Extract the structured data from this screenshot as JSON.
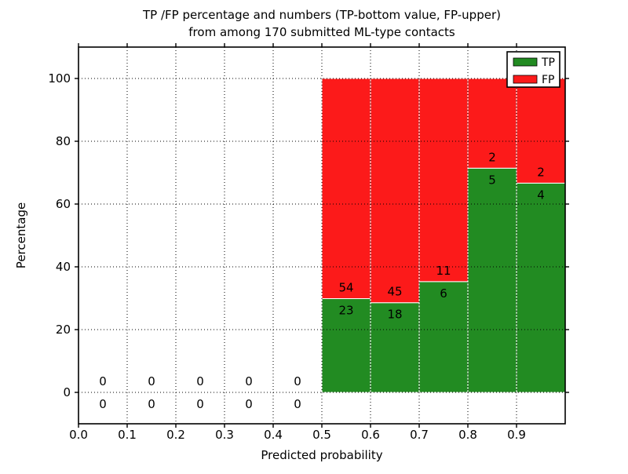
{
  "figure": {
    "title_line1": "TP /FP percentage and numbers (TP-bottom value, FP-upper)",
    "title_line2": "from among 170 submitted ML-type contacts"
  },
  "chart_data": {
    "type": "bar",
    "stacked": true,
    "title": "TP /FP percentage and numbers (TP-bottom value, FP-upper)\nfrom among 170 submitted ML-type contacts",
    "xlabel": "Predicted probability",
    "ylabel": "Percentage",
    "xlim": [
      0.0,
      1.0
    ],
    "ylim": [
      -10,
      110
    ],
    "grid": true,
    "grid_style": "dotted",
    "total_contacts": 170,
    "annotation_rule": "TP count below segment boundary, FP count above segment boundary",
    "xticks": [
      {
        "value": 0.0,
        "label": "0.0"
      },
      {
        "value": 0.1,
        "label": "0.1"
      },
      {
        "value": 0.2,
        "label": "0.2"
      },
      {
        "value": 0.3,
        "label": "0.3"
      },
      {
        "value": 0.4,
        "label": "0.4"
      },
      {
        "value": 0.5,
        "label": "0.5"
      },
      {
        "value": 0.6,
        "label": "0.6"
      },
      {
        "value": 0.7,
        "label": "0.7"
      },
      {
        "value": 0.8,
        "label": "0.8"
      },
      {
        "value": 0.9,
        "label": "0.9"
      }
    ],
    "yticks": [
      {
        "value": 0,
        "label": "0"
      },
      {
        "value": 20,
        "label": "20"
      },
      {
        "value": 40,
        "label": "40"
      },
      {
        "value": 60,
        "label": "60"
      },
      {
        "value": 80,
        "label": "80"
      },
      {
        "value": 100,
        "label": "100"
      }
    ],
    "legend": {
      "position": "upper right",
      "entries": [
        {
          "name": "TP",
          "color": "#228b22"
        },
        {
          "name": "FP",
          "color": "#fc1a1a"
        }
      ]
    },
    "colors": {
      "tp": "#228b22",
      "fp": "#fc1a1a",
      "bar_edge": "#ffffff",
      "grid": "#000000",
      "axis": "#000000",
      "text": "#000000",
      "background": "#ffffff"
    },
    "bins": [
      {
        "x_start": 0.0,
        "x_end": 0.1,
        "tp_count": 0,
        "fp_count": 0,
        "tp_pct": 0,
        "fp_pct": 0
      },
      {
        "x_start": 0.1,
        "x_end": 0.2,
        "tp_count": 0,
        "fp_count": 0,
        "tp_pct": 0,
        "fp_pct": 0
      },
      {
        "x_start": 0.2,
        "x_end": 0.3,
        "tp_count": 0,
        "fp_count": 0,
        "tp_pct": 0,
        "fp_pct": 0
      },
      {
        "x_start": 0.3,
        "x_end": 0.4,
        "tp_count": 0,
        "fp_count": 0,
        "tp_pct": 0,
        "fp_pct": 0
      },
      {
        "x_start": 0.4,
        "x_end": 0.5,
        "tp_count": 0,
        "fp_count": 0,
        "tp_pct": 0,
        "fp_pct": 0
      },
      {
        "x_start": 0.5,
        "x_end": 0.6,
        "tp_count": 23,
        "fp_count": 54,
        "tp_pct": 29.87,
        "fp_pct": 70.13
      },
      {
        "x_start": 0.6,
        "x_end": 0.7,
        "tp_count": 18,
        "fp_count": 45,
        "tp_pct": 28.57,
        "fp_pct": 71.43
      },
      {
        "x_start": 0.7,
        "x_end": 0.8,
        "tp_count": 6,
        "fp_count": 11,
        "tp_pct": 35.29,
        "fp_pct": 64.71
      },
      {
        "x_start": 0.8,
        "x_end": 0.9,
        "tp_count": 5,
        "fp_count": 2,
        "tp_pct": 71.43,
        "fp_pct": 28.57
      },
      {
        "x_start": 0.9,
        "x_end": 1.0,
        "tp_count": 4,
        "fp_count": 2,
        "tp_pct": 66.67,
        "fp_pct": 33.33
      }
    ]
  }
}
